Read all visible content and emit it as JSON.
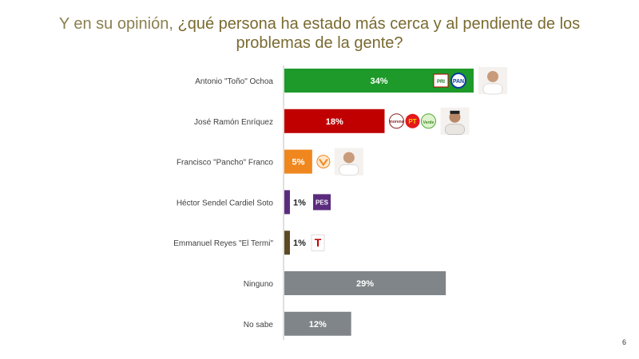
{
  "header": {
    "title_prefix": "Y en su opinión, ",
    "title_question": "¿qué persona ha estado más cerca y al pendiente de los problemas de la gente?"
  },
  "page_number": "6",
  "chart_data": {
    "type": "bar",
    "orientation": "horizontal",
    "title": "Y en su opinión, ¿qué persona ha estado más cerca y al pendiente de los problemas de la gente?",
    "categories": [
      "Antonio \"Toño\" Ochoa",
      "José Ramón Enríquez",
      "Francisco \"Pancho\" Franco",
      "Héctor Sendel Cardiel Soto",
      "Emmanuel Reyes \"El Termi\"",
      "Ninguno",
      "No sabe"
    ],
    "values": [
      34,
      18,
      5,
      1,
      1,
      29,
      12
    ],
    "value_labels": [
      "34%",
      "18%",
      "5%",
      "1%",
      "1%",
      "29%",
      "12%"
    ],
    "unit": "%",
    "colors": [
      "#1d9a29",
      "#c00000",
      "#f0871e",
      "#5b2c7e",
      "#5c4a24",
      "#808589",
      "#808589"
    ],
    "party_logos": [
      [
        "PRI",
        "PAN"
      ],
      [
        "morena",
        "PT",
        "PVEM"
      ],
      [
        "MC"
      ],
      [
        "PES"
      ],
      [
        "T"
      ],
      [],
      []
    ],
    "candidate_photos": [
      true,
      true,
      true,
      false,
      false,
      false,
      false
    ],
    "xlim": [
      0,
      100
    ],
    "grid": false,
    "legend": "none"
  },
  "logos": {
    "pri": "PRI",
    "pan": "PAN",
    "morena": "morena",
    "pt": "PT",
    "pvem": "Verde",
    "pes": "PES",
    "termi": "T"
  }
}
